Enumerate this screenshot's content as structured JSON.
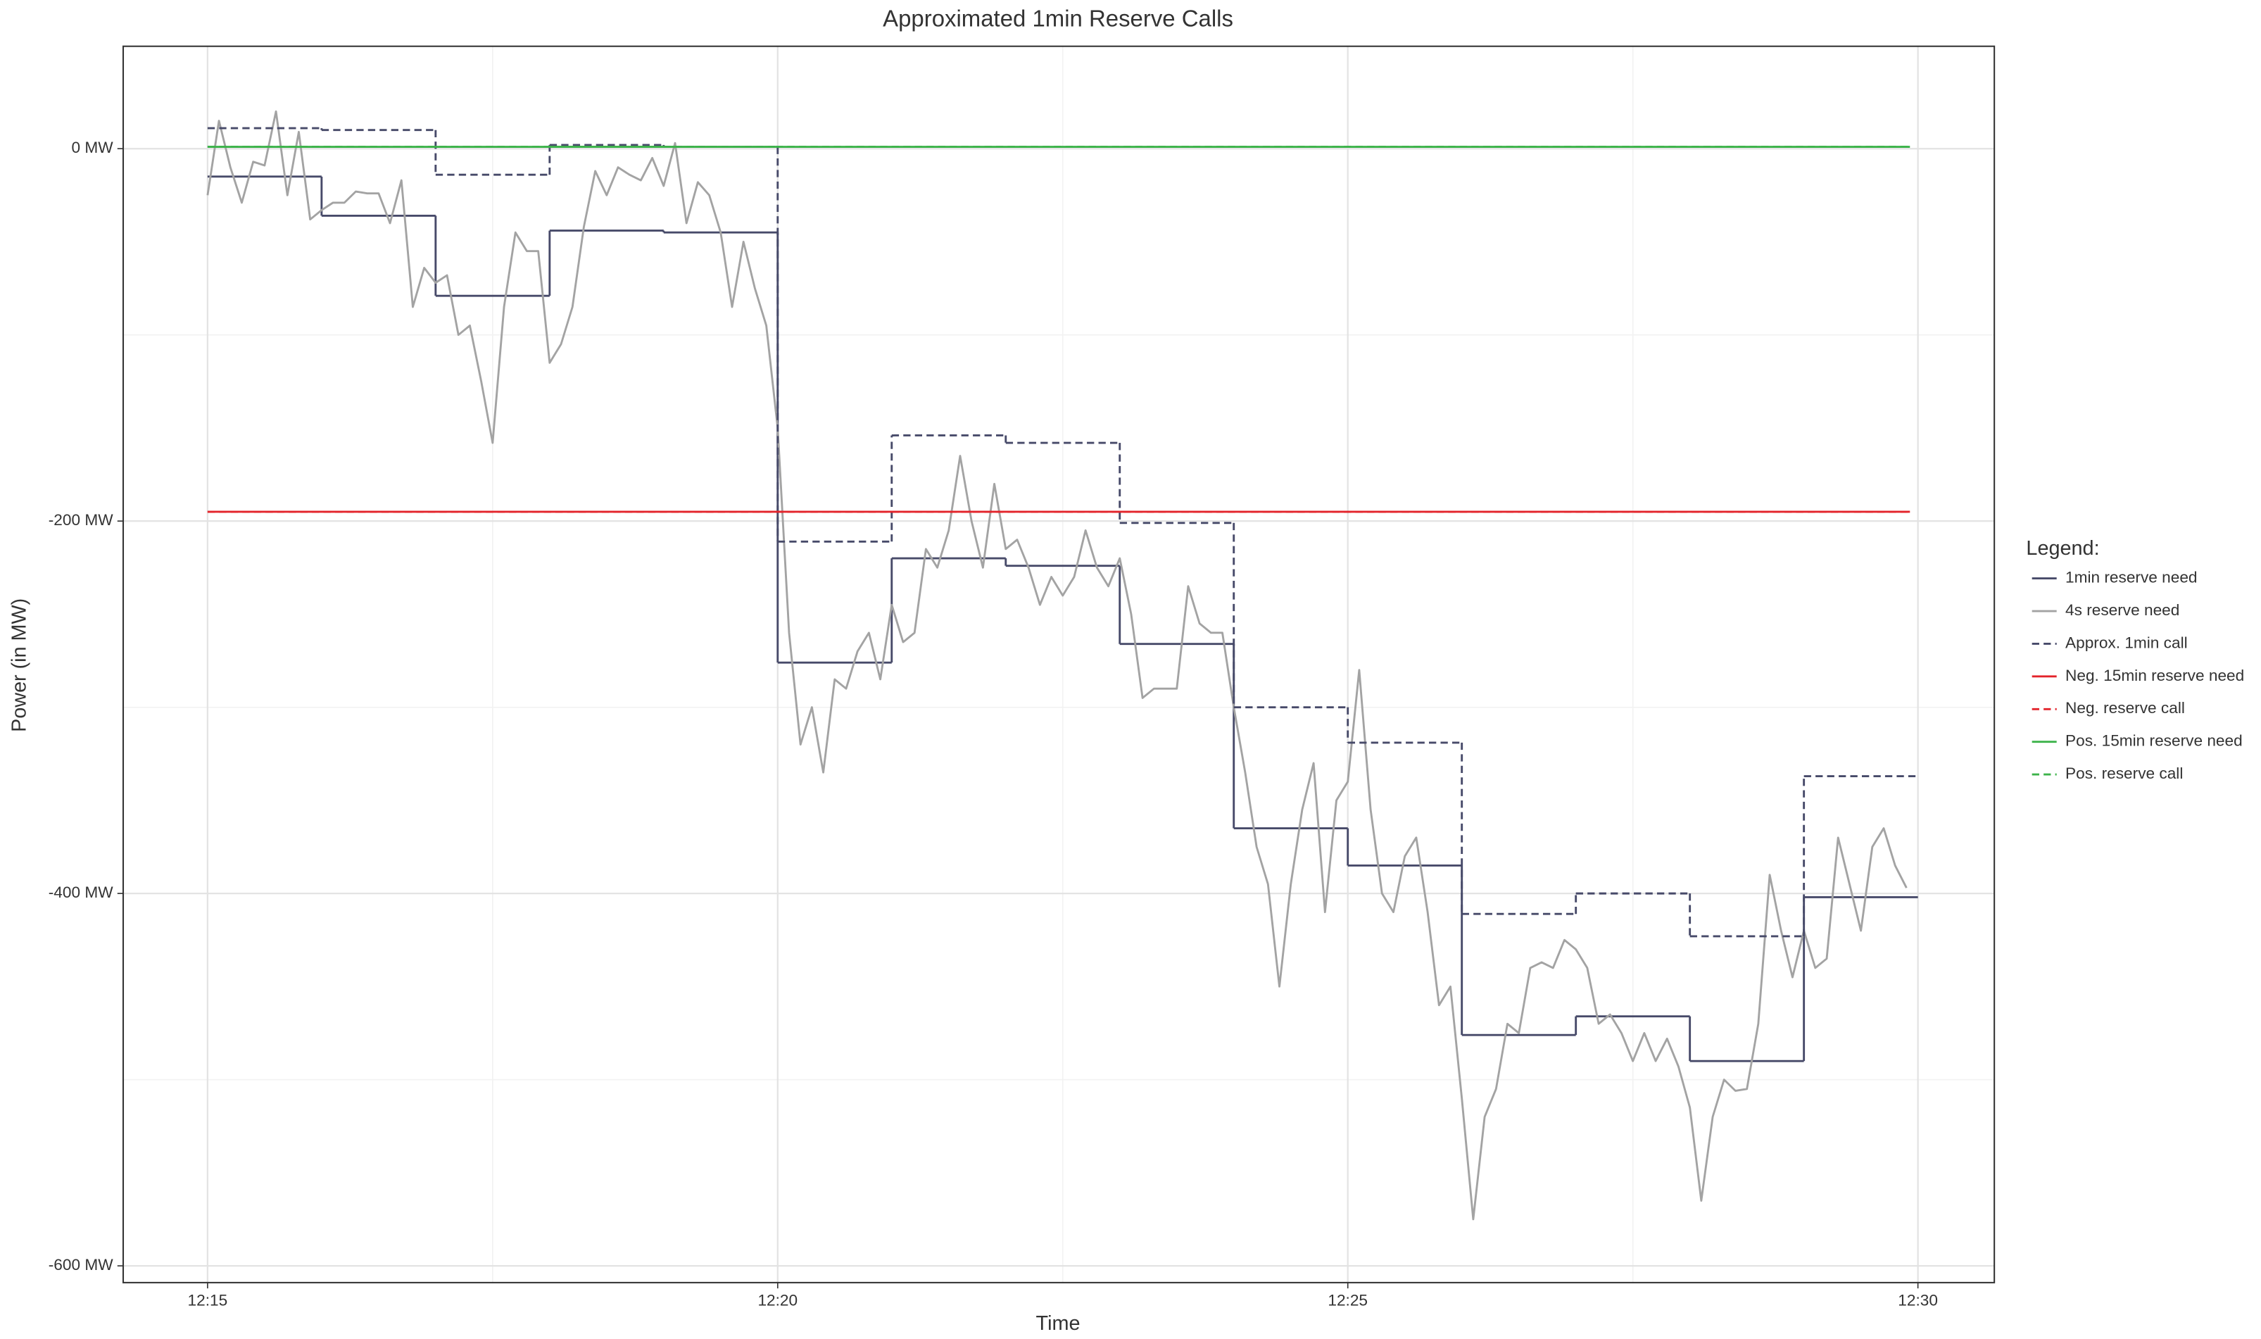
{
  "chart_data": {
    "type": "line",
    "title": "Approximated 1min Reserve Calls",
    "xlabel": "Time",
    "ylabel": "Power (in MW)",
    "xlim": [
      734.26,
      750.67
    ],
    "ylim": [
      -609,
      55
    ],
    "xticks": [
      {
        "value": 735,
        "label": "12:15"
      },
      {
        "value": 740,
        "label": "12:20"
      },
      {
        "value": 745,
        "label": "12:25"
      },
      {
        "value": 750,
        "label": "12:30"
      }
    ],
    "yticks": [
      {
        "value": 0,
        "label": "0  MW"
      },
      {
        "value": -200,
        "label": "-200  MW"
      },
      {
        "value": -400,
        "label": "-400  MW"
      },
      {
        "value": -600,
        "label": "-600  MW"
      }
    ],
    "xminor": [
      737.5,
      742.5,
      747.5
    ],
    "yminor": [
      -100,
      -300,
      -500
    ],
    "grid": true,
    "legend_title": "Legend:",
    "legend_position": "right",
    "series": [
      {
        "name": "1min reserve need",
        "color": "#474a69",
        "dash": false,
        "step": true,
        "x": [
          735,
          736,
          737,
          738,
          739,
          740,
          741,
          742,
          743,
          744,
          745,
          746,
          747,
          748,
          749
        ],
        "values": [
          -15,
          -36,
          -79,
          -44,
          -45,
          -276,
          -220,
          -224,
          -266,
          -365,
          -385,
          -476,
          -466,
          -490,
          -402
        ]
      },
      {
        "name": "4s reserve need",
        "color": "#a3a3a3",
        "dash": false,
        "step": false,
        "x": [
          735,
          735.1,
          735.2,
          735.3,
          735.4,
          735.5,
          735.6,
          735.7,
          735.8,
          735.9,
          736,
          736.1,
          736.2,
          736.3,
          736.4,
          736.5,
          736.6,
          736.7,
          736.8,
          736.9,
          737,
          737.1,
          737.2,
          737.3,
          737.4,
          737.5,
          737.6,
          737.7,
          737.8,
          737.9,
          738,
          738.1,
          738.2,
          738.3,
          738.4,
          738.5,
          738.6,
          738.7,
          738.8,
          738.9,
          739,
          739.1,
          739.2,
          739.3,
          739.4,
          739.5,
          739.6,
          739.7,
          739.8,
          739.9,
          740,
          740.1,
          740.2,
          740.3,
          740.4,
          740.5,
          740.6,
          740.7,
          740.8,
          740.9,
          741,
          741.1,
          741.2,
          741.3,
          741.4,
          741.5,
          741.6,
          741.7,
          741.8,
          741.9,
          742,
          742.1,
          742.2,
          742.3,
          742.4,
          742.5,
          742.6,
          742.7,
          742.8,
          742.9,
          743,
          743.1,
          743.2,
          743.3,
          743.4,
          743.5,
          743.6,
          743.7,
          743.8,
          743.9,
          744,
          744.1,
          744.2,
          744.3,
          744.4,
          744.5,
          744.6,
          744.7,
          744.8,
          744.9,
          745,
          745.1,
          745.2,
          745.3,
          745.4,
          745.5,
          745.6,
          745.7,
          745.8,
          745.9,
          746,
          746.1,
          746.2,
          746.3,
          746.4,
          746.5,
          746.6,
          746.7,
          746.8,
          746.9,
          747,
          747.1,
          747.2,
          747.3,
          747.4,
          747.5,
          747.6,
          747.7,
          747.8,
          747.9,
          748,
          748.1,
          748.2,
          748.3,
          748.4,
          748.5,
          748.6,
          748.7,
          748.8,
          748.9,
          749,
          749.1,
          749.2,
          749.3,
          749.4,
          749.5,
          749.6,
          749.7,
          749.8,
          749.9
        ],
        "values": [
          -25,
          15,
          -10,
          -29,
          -7,
          -9,
          20,
          -25,
          9,
          -38,
          -33,
          -29,
          -29,
          -23,
          -24,
          -24,
          -40,
          -17,
          -85,
          -64,
          -72,
          -68,
          -100,
          -95,
          -125,
          -158,
          -85,
          -45,
          -55,
          -55,
          -115,
          -105,
          -85,
          -42,
          -12,
          -25,
          -10,
          -14,
          -17,
          -5,
          -20,
          3,
          -40,
          -18,
          -25,
          -45,
          -85,
          -50,
          -75,
          -95,
          -150,
          -260,
          -320,
          -300,
          -335,
          -285,
          -290,
          -270,
          -260,
          -285,
          -245,
          -265,
          -260,
          -215,
          -225,
          -205,
          -165,
          -200,
          -225,
          -180,
          -215,
          -210,
          -225,
          -245,
          -230,
          -240,
          -230,
          -205,
          -225,
          -235,
          -220,
          -250,
          -295,
          -290,
          -290,
          -290,
          -235,
          -255,
          -260,
          -260,
          -300,
          -335,
          -375,
          -395,
          -450,
          -395,
          -355,
          -330,
          -410,
          -350,
          -340,
          -280,
          -355,
          -400,
          -410,
          -380,
          -370,
          -410,
          -460,
          -450,
          -510,
          -575,
          -520,
          -505,
          -470,
          -475,
          -440,
          -437,
          -440,
          -425,
          -430,
          -440,
          -470,
          -465,
          -475,
          -490,
          -475,
          -490,
          -478,
          -493,
          -515,
          -565,
          -520,
          -500,
          -506,
          -505,
          -470,
          -390,
          -420,
          -445,
          -420,
          -440,
          -435,
          -370,
          -395,
          -420,
          -375,
          -365,
          -385,
          -397
        ]
      },
      {
        "name": "Approx. 1min call",
        "color": "#474a69",
        "dash": true,
        "step": true,
        "x": [
          735,
          736,
          737,
          738,
          739,
          740,
          741,
          742,
          743,
          744,
          745,
          746,
          747,
          748,
          749
        ],
        "values": [
          11,
          10,
          -14,
          2,
          1,
          -211,
          -154,
          -158,
          -201,
          -300,
          -319,
          -411,
          -400,
          -423,
          -337
        ]
      },
      {
        "name": "Neg. 15min reserve need",
        "color": "#e3242b",
        "dash": false,
        "step": false,
        "x": [
          735,
          749.93
        ],
        "values": [
          -195,
          -195
        ]
      },
      {
        "name": "Neg. reserve call",
        "color": "#e3242b",
        "dash": true,
        "step": false,
        "x": [
          735,
          749.93
        ],
        "values": [
          -195,
          -195
        ]
      },
      {
        "name": "Pos. 15min reserve need",
        "color": "#3cb34a",
        "dash": false,
        "step": false,
        "x": [
          735,
          749.93
        ],
        "values": [
          1,
          1
        ]
      },
      {
        "name": "Pos. reserve call",
        "color": "#3cb34a",
        "dash": true,
        "step": false,
        "x": [
          735,
          749.93
        ],
        "values": [
          1,
          1
        ]
      }
    ]
  }
}
